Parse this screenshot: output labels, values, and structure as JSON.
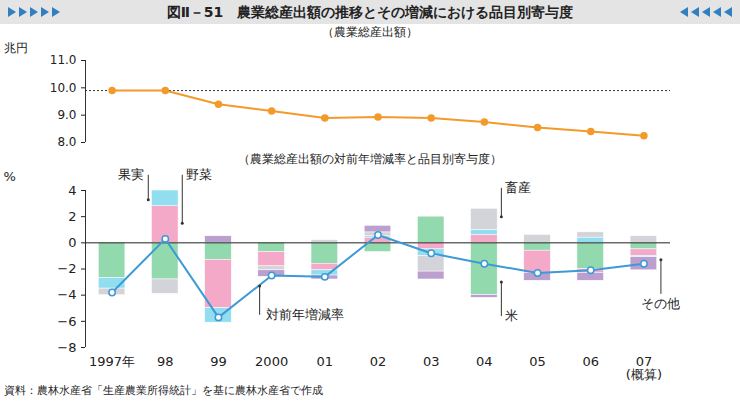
{
  "title": "図Ⅱ－51　農業総産出額の推移とその増減における品目別寄与度",
  "source": "資料：農林水産省「生産農業所得統計」を基に農林水産省で作成",
  "chart_data": [
    {
      "type": "line",
      "title": "（農業総産出額）",
      "y_label": "兆円",
      "categories": [
        "1997年",
        "98",
        "99",
        "2000",
        "01",
        "02",
        "03",
        "04",
        "05",
        "06",
        "07\n(概算)"
      ],
      "series": [
        {
          "color": "#f39a2b",
          "marker": "circle",
          "values": [
            9.9,
            9.9,
            9.4,
            9.15,
            8.9,
            8.93,
            8.9,
            8.75,
            8.55,
            8.4,
            8.25
          ]
        }
      ],
      "ylim": [
        8,
        11
      ],
      "yticks": [
        8,
        9,
        10,
        11
      ],
      "reference_value": 9.9,
      "tick_labels": "y"
    },
    {
      "type": "bar",
      "stacked": true,
      "title": "（農業総産出額の対前年増減率と品目別寄与度）",
      "y_label": "%",
      "categories": [
        "1997年",
        "98",
        "99",
        "2000",
        "01",
        "02",
        "03",
        "04",
        "05",
        "06",
        "07\n(概算)"
      ],
      "series": [
        {
          "name": "米",
          "color": "#93d9ae",
          "values": [
            -2.7,
            -2.8,
            -1.3,
            -0.7,
            -1.6,
            -0.7,
            2.0,
            -4.0,
            -0.6,
            -2.0,
            -0.5
          ]
        },
        {
          "name": "野菜",
          "color": "#f5a9c9",
          "values": [
            0,
            2.8,
            -3.7,
            -1.1,
            -0.5,
            0.4,
            -0.5,
            0.6,
            -1.7,
            -0.3,
            -0.5
          ]
        },
        {
          "name": "果実",
          "color": "#92def0",
          "values": [
            -0.8,
            1.2,
            -1.1,
            0,
            -0.4,
            0.1,
            -0.5,
            0.4,
            0,
            0.4,
            -0.1
          ]
        },
        {
          "name": "畜産",
          "color": "#d3d3da",
          "values": [
            -0.5,
            -1.1,
            0,
            -0.3,
            0.2,
            0.3,
            -1.2,
            1.6,
            0.6,
            0.4,
            0.5
          ]
        },
        {
          "name": "その他",
          "color": "#bb9fcf",
          "values": [
            0,
            0,
            0.5,
            -0.5,
            -0.3,
            0.5,
            -0.6,
            -0.2,
            -0.6,
            -0.6,
            -1.0
          ]
        },
        {
          "name": "対前年増減率",
          "type": "line",
          "color": "#3c9ad6",
          "marker": "circle",
          "values": [
            -3.8,
            0.3,
            -5.7,
            -2.5,
            -2.6,
            0.6,
            -0.8,
            -1.6,
            -2.3,
            -2.1,
            -1.6
          ]
        }
      ],
      "ylim": [
        -8,
        4
      ],
      "yticks": [
        -8,
        -6,
        -4,
        -2,
        0,
        2,
        4
      ],
      "annotations": [
        {
          "series": "果実",
          "category": "98",
          "y": 3.3,
          "label_y": 5.2
        },
        {
          "series": "野菜",
          "category": "98",
          "y": 1.5,
          "label_y": 5.2
        },
        {
          "series": "畜産",
          "category": "04",
          "y": 2.0,
          "label_y": 4.2
        },
        {
          "series": "米",
          "category": "04",
          "y": -3.0,
          "label_y": -5.6
        },
        {
          "series": "その他",
          "category": "07\n(概算)",
          "y": -1.3,
          "label_y": -3.9
        },
        {
          "series": "対前年増減率",
          "category": "2000",
          "y": -3.3,
          "label_y": -5.5
        }
      ]
    }
  ]
}
